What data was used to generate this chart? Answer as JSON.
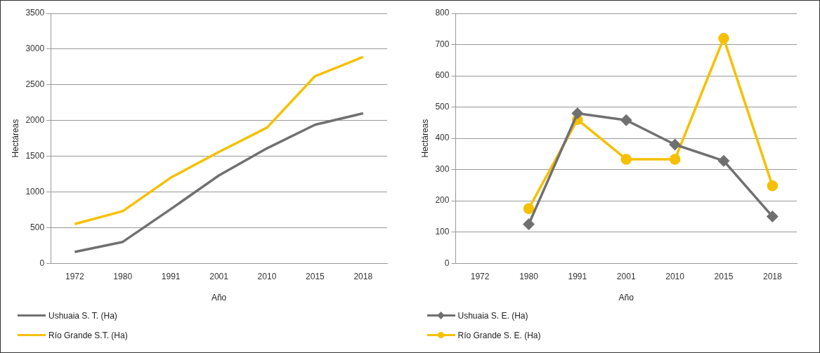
{
  "chart_data": [
    {
      "type": "line",
      "categories": [
        "1972",
        "1980",
        "1991",
        "2001",
        "2010",
        "2015",
        "2018"
      ],
      "xlabel": "Año",
      "ylabel": "Hectáreas",
      "ylim": [
        0,
        3500
      ],
      "yticks": [
        0,
        500,
        1000,
        1500,
        2000,
        2500,
        3000,
        3500
      ],
      "grid": "y",
      "legend": "bottom",
      "marker": "none",
      "series": [
        {
          "name": "Ushuaia S. T. (Ha)",
          "color": "#707070",
          "values": [
            160,
            300,
            760,
            1230,
            1610,
            1940,
            2100
          ]
        },
        {
          "name": "Río Grande S.T. (Ha)",
          "color": "#f5c000",
          "values": [
            550,
            730,
            1200,
            1560,
            1900,
            2620,
            2890
          ]
        }
      ]
    },
    {
      "type": "line",
      "categories": [
        "1972",
        "1980",
        "1991",
        "2001",
        "2010",
        "2015",
        "2018"
      ],
      "xlabel": "Año",
      "ylabel": "Hectáreas",
      "ylim": [
        0,
        800
      ],
      "yticks": [
        0,
        100,
        200,
        300,
        400,
        500,
        600,
        700,
        800
      ],
      "grid": "y",
      "legend": "bottom",
      "series": [
        {
          "name": "Ushuaia S. E. (Ha)",
          "color": "#707070",
          "marker": "diamond",
          "values": [
            null,
            125,
            480,
            458,
            380,
            328,
            150
          ]
        },
        {
          "name": "Río Grande S. E. (Ha)",
          "color": "#f5c000",
          "marker": "circle",
          "values": [
            null,
            175,
            460,
            333,
            333,
            720,
            248
          ]
        }
      ]
    }
  ]
}
